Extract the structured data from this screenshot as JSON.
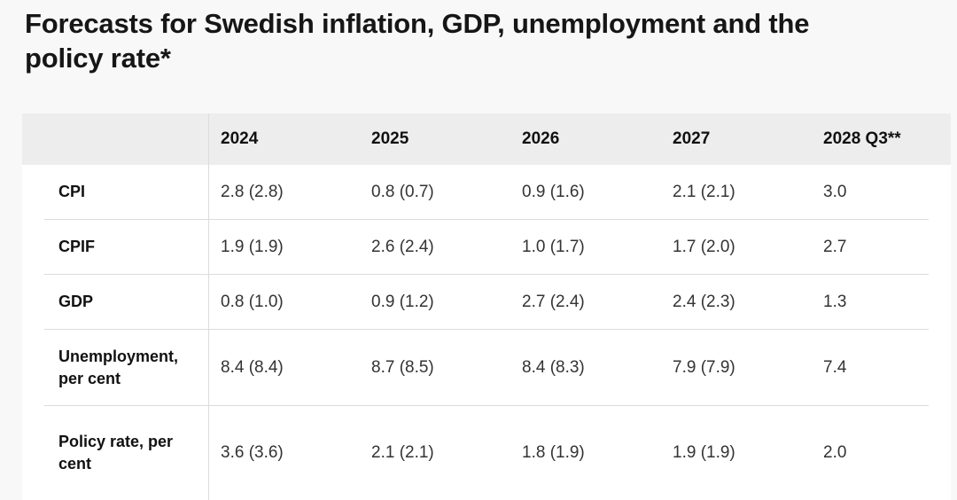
{
  "page": {
    "title": "Forecasts for Swedish inflation, GDP, unemployment and the policy rate*",
    "background_color": "#f8f8f8"
  },
  "table": {
    "header": {
      "columns": [
        "2024",
        "2025",
        "2026",
        "2027",
        "2028 Q3**"
      ]
    },
    "rows": [
      {
        "label": "CPI",
        "values": [
          "2.8 (2.8)",
          "0.8 (0.7)",
          "0.9 (1.6)",
          "2.1 (2.1)",
          "3.0"
        ]
      },
      {
        "label": "CPIF",
        "values": [
          "1.9 (1.9)",
          "2.6 (2.4)",
          "1.0 (1.7)",
          "1.7 (2.0)",
          "2.7"
        ]
      },
      {
        "label": "GDP",
        "values": [
          "0.8 (1.0)",
          "0.9 (1.2)",
          "2.7 (2.4)",
          "2.4 (2.3)",
          "1.3"
        ]
      },
      {
        "label": "Unemployment, per cent",
        "values": [
          "8.4 (8.4)",
          "8.7 (8.5)",
          "8.4 (8.3)",
          "7.9 (7.9)",
          "7.4"
        ]
      },
      {
        "label": "Policy rate, per cent",
        "values": [
          "3.6 (3.6)",
          "2.1 (2.1)",
          "1.8 (1.9)",
          "1.9 (1.9)",
          "2.0"
        ]
      }
    ],
    "colors": {
      "header_background": "#ededed",
      "table_background": "#ffffff",
      "border": "#dcdcdc",
      "label_text": "#111111",
      "value_text": "#333333",
      "title_text": "#161616"
    }
  },
  "chart_data": {
    "type": "table",
    "title": "Forecasts for Swedish inflation, GDP, unemployment and the policy rate*",
    "categories": [
      "2024",
      "2025",
      "2026",
      "2027",
      "2028 Q3**"
    ],
    "series": [
      {
        "name": "CPI",
        "values": [
          "2.8 (2.8)",
          "0.8 (0.7)",
          "0.9 (1.6)",
          "2.1 (2.1)",
          "3.0"
        ]
      },
      {
        "name": "CPIF",
        "values": [
          "1.9 (1.9)",
          "2.6 (2.4)",
          "1.0 (1.7)",
          "1.7 (2.0)",
          "2.7"
        ]
      },
      {
        "name": "GDP",
        "values": [
          "0.8 (1.0)",
          "0.9 (1.2)",
          "2.7 (2.4)",
          "2.4 (2.3)",
          "1.3"
        ]
      },
      {
        "name": "Unemployment, per cent",
        "values": [
          "8.4 (8.4)",
          "8.7 (8.5)",
          "8.4 (8.3)",
          "7.9 (7.9)",
          "7.4"
        ]
      },
      {
        "name": "Policy rate, per cent",
        "values": [
          "3.6 (3.6)",
          "2.1 (2.1)",
          "1.8 (1.9)",
          "1.9 (1.9)",
          "2.0"
        ]
      }
    ],
    "layout": {
      "header_row_shaded": true,
      "first_column_divider": true,
      "row_separators": true
    }
  }
}
